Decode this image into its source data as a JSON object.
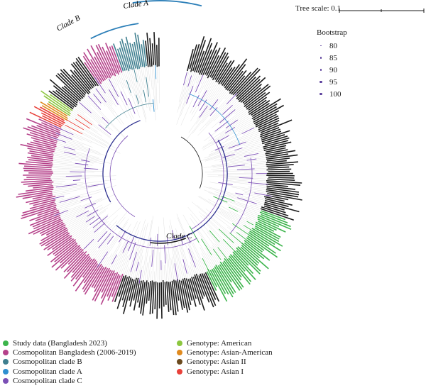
{
  "tree_scale": {
    "label": "Tree scale: 0.1"
  },
  "clades": [
    {
      "label": "Clade A",
      "color": "#2c7fb8"
    },
    {
      "label": "Clade B",
      "color": "#2c7fb8"
    },
    {
      "label": "Clade C",
      "color": "#1a1a1a"
    }
  ],
  "bootstrap": {
    "title": "Bootstrap",
    "items": [
      {
        "label": "80",
        "size": 1.6
      },
      {
        "label": "85",
        "size": 2.0
      },
      {
        "label": "90",
        "size": 2.4
      },
      {
        "label": "95",
        "size": 2.8
      },
      {
        "label": "100",
        "size": 3.2
      }
    ]
  },
  "legend": [
    {
      "label": "Study data (Bangladesh 2023)",
      "color": "#3cb44b"
    },
    {
      "label": "Cosmopolitan Bangladesh (2006-2019)",
      "color": "#b5418a"
    },
    {
      "label": "Cosmopolitan clade B",
      "color": "#3f7f8f"
    },
    {
      "label": "Cosmopolitan clade A",
      "color": "#2f8fd0"
    },
    {
      "label": "Cosmopolitan clade C",
      "color": "#7b4fb5"
    },
    {
      "label": "Genotype: American",
      "color": "#8cc63f"
    },
    {
      "label": "Genotype: Asian-American",
      "color": "#e08a1e"
    },
    {
      "label": "Genotype: Asian II",
      "color": "#6b4a1e"
    },
    {
      "label": "Genotype: Asian I",
      "color": "#e8413a"
    }
  ]
}
